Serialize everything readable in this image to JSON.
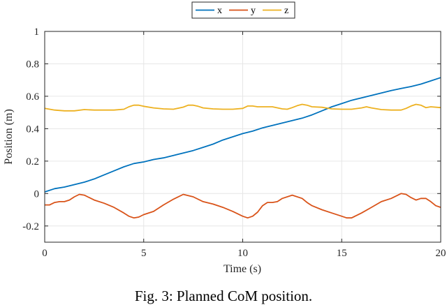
{
  "caption": "Fig. 3: Planned CoM position.",
  "chart_data": {
    "type": "line",
    "xlabel": "Time (s)",
    "ylabel": "Position (m)",
    "xlim": [
      0,
      20
    ],
    "ylim": [
      -0.3,
      1
    ],
    "xticks": [
      0,
      5,
      10,
      15,
      20
    ],
    "yticks": [
      -0.2,
      0,
      0.2,
      0.4,
      0.6,
      0.8,
      1
    ],
    "xtick_labels": [
      "0",
      "5",
      "10",
      "15",
      "20"
    ],
    "ytick_labels": [
      "-0.2",
      "0",
      "0.2",
      "0.4",
      "0.6",
      "0.8",
      "1"
    ],
    "grid": true,
    "legend_position": "top-center",
    "series": [
      {
        "name": "x",
        "color": "#0072BD",
        "x": [
          0,
          0.5,
          1,
          1.5,
          2,
          2.5,
          3,
          3.5,
          4,
          4.5,
          5,
          5.5,
          6,
          6.5,
          7,
          7.5,
          8,
          8.5,
          9,
          9.5,
          10,
          10.5,
          11,
          11.5,
          12,
          12.5,
          13,
          13.5,
          14,
          14.5,
          15,
          15.5,
          16,
          16.5,
          17,
          17.5,
          18,
          18.5,
          19,
          19.5,
          20
        ],
        "values": [
          0.01,
          0.03,
          0.04,
          0.055,
          0.07,
          0.09,
          0.115,
          0.14,
          0.165,
          0.185,
          0.195,
          0.21,
          0.22,
          0.235,
          0.25,
          0.265,
          0.285,
          0.305,
          0.33,
          0.35,
          0.37,
          0.385,
          0.405,
          0.42,
          0.435,
          0.45,
          0.465,
          0.485,
          0.51,
          0.535,
          0.555,
          0.575,
          0.59,
          0.605,
          0.62,
          0.635,
          0.648,
          0.66,
          0.675,
          0.695,
          0.715
        ]
      },
      {
        "name": "y",
        "color": "#D95319",
        "x": [
          0,
          0.25,
          0.5,
          0.75,
          1,
          1.25,
          1.5,
          1.75,
          2,
          2.25,
          2.5,
          3,
          3.5,
          4,
          4.25,
          4.5,
          4.75,
          5,
          5.5,
          6,
          6.5,
          7,
          7.5,
          8,
          8.5,
          9,
          9.5,
          10,
          10.25,
          10.5,
          10.75,
          11,
          11.25,
          11.5,
          11.75,
          12,
          12.5,
          13,
          13.25,
          13.5,
          14,
          14.5,
          15,
          15.25,
          15.5,
          15.75,
          16,
          16.5,
          17,
          17.5,
          18,
          18.25,
          18.5,
          18.75,
          19,
          19.25,
          19.5,
          19.75,
          20
        ],
        "values": [
          -0.07,
          -0.07,
          -0.055,
          -0.05,
          -0.05,
          -0.04,
          -0.02,
          -0.005,
          -0.01,
          -0.025,
          -0.04,
          -0.06,
          -0.085,
          -0.12,
          -0.14,
          -0.15,
          -0.145,
          -0.13,
          -0.11,
          -0.07,
          -0.035,
          -0.005,
          -0.02,
          -0.05,
          -0.065,
          -0.085,
          -0.11,
          -0.14,
          -0.15,
          -0.14,
          -0.115,
          -0.075,
          -0.055,
          -0.055,
          -0.05,
          -0.03,
          -0.01,
          -0.03,
          -0.055,
          -0.075,
          -0.1,
          -0.12,
          -0.14,
          -0.15,
          -0.15,
          -0.135,
          -0.12,
          -0.085,
          -0.05,
          -0.03,
          0,
          -0.005,
          -0.025,
          -0.04,
          -0.03,
          -0.03,
          -0.05,
          -0.075,
          -0.085
        ]
      },
      {
        "name": "z",
        "color": "#EDB120",
        "x": [
          0,
          0.5,
          1,
          1.5,
          2,
          2.5,
          3,
          3.5,
          4,
          4.25,
          4.5,
          4.75,
          5,
          5.5,
          6,
          6.5,
          7,
          7.25,
          7.5,
          7.75,
          8,
          8.5,
          9,
          9.5,
          10,
          10.25,
          10.5,
          10.75,
          11,
          11.5,
          12,
          12.25,
          12.5,
          12.75,
          13,
          13.25,
          13.5,
          14,
          14.5,
          15,
          15.5,
          16,
          16.25,
          16.5,
          17,
          17.5,
          18,
          18.25,
          18.5,
          18.75,
          19,
          19.25,
          19.5,
          20
        ],
        "values": [
          0.525,
          0.515,
          0.51,
          0.51,
          0.518,
          0.515,
          0.515,
          0.515,
          0.52,
          0.535,
          0.545,
          0.545,
          0.538,
          0.528,
          0.522,
          0.52,
          0.533,
          0.545,
          0.545,
          0.538,
          0.528,
          0.522,
          0.52,
          0.52,
          0.525,
          0.54,
          0.54,
          0.535,
          0.535,
          0.535,
          0.522,
          0.52,
          0.53,
          0.542,
          0.55,
          0.545,
          0.535,
          0.532,
          0.522,
          0.52,
          0.52,
          0.528,
          0.535,
          0.528,
          0.518,
          0.515,
          0.515,
          0.525,
          0.54,
          0.55,
          0.545,
          0.53,
          0.535,
          0.53
        ]
      }
    ]
  }
}
